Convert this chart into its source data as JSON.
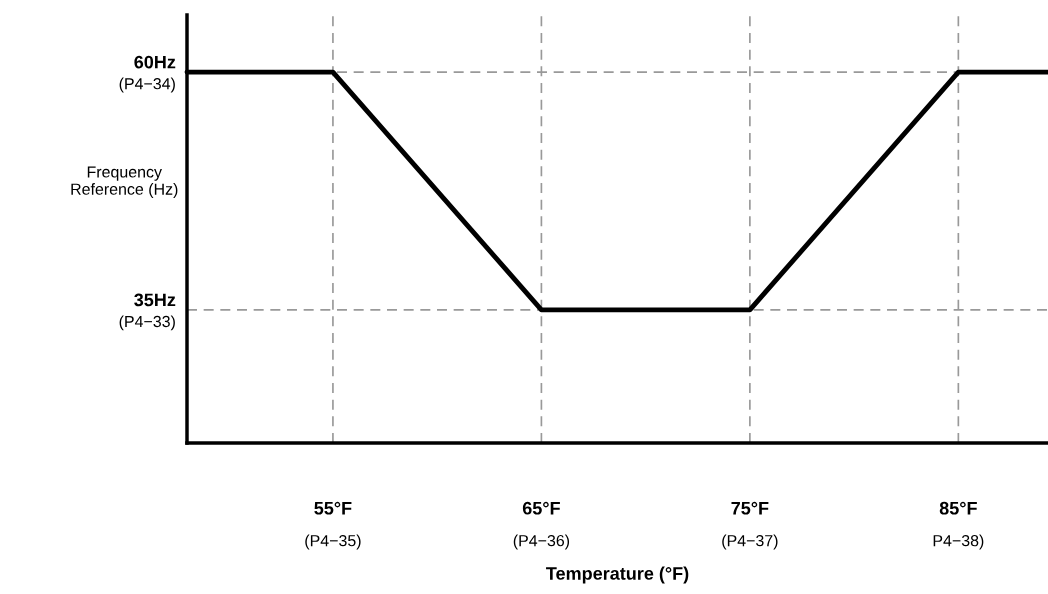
{
  "chart_data": {
    "type": "line",
    "xlabel": "Temperature (°F)",
    "ylabel": "Frequency\nReference (Hz)",
    "series": [
      {
        "color": "#000000",
        "x": [
          48,
          55,
          65,
          75,
          85,
          89.3
        ],
        "values": [
          60,
          60,
          35,
          35,
          60,
          60
        ]
      }
    ],
    "xlim": [
      48,
      89.3
    ],
    "ylim": [
      21,
      66
    ],
    "xticks": [
      {
        "value": 55,
        "label": "55°F"
      },
      {
        "value": 65,
        "label": "65°F"
      },
      {
        "value": 75,
        "label": "75°F"
      },
      {
        "value": 85,
        "label": "85°F"
      }
    ],
    "yticks": [
      {
        "value": 35,
        "label": "35Hz"
      },
      {
        "value": 60,
        "label": "60Hz"
      }
    ],
    "annotations": [
      "(P4−33)",
      "(P4−34)",
      "(P4−35)",
      "(P4−36)",
      "(P4−37)",
      "P4−38)"
    ],
    "grid": true,
    "marker": "none",
    "line_style": "solid"
  }
}
